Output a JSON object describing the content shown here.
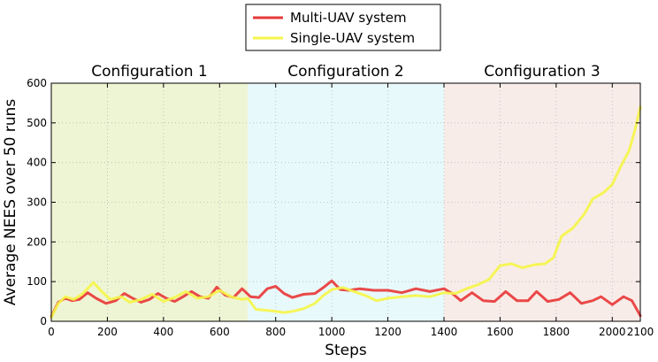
{
  "chart_data": {
    "type": "line",
    "title": "",
    "xlabel": "Steps",
    "ylabel": "Average NEES over 50 runs",
    "xlim": [
      0,
      2100
    ],
    "ylim": [
      0,
      600
    ],
    "xticks": [
      0,
      200,
      400,
      600,
      800,
      1000,
      1200,
      1400,
      1600,
      1800,
      2000,
      2100
    ],
    "yticks": [
      0,
      100,
      200,
      300,
      400,
      500,
      600
    ],
    "grid": true,
    "legend_position": "top-center",
    "regions": [
      {
        "label": "Configuration 1",
        "x_range": [
          0,
          700
        ],
        "color": "#eef5d4"
      },
      {
        "label": "Configuration 2",
        "x_range": [
          700,
          1400
        ],
        "color": "#e8f9fb"
      },
      {
        "label": "Configuration 3",
        "x_range": [
          1400,
          2100
        ],
        "color": "#f8ece8"
      }
    ],
    "series": [
      {
        "name": "Multi-UAV system",
        "color": "#e83a3a",
        "points": [
          [
            0,
            12
          ],
          [
            25,
            48
          ],
          [
            50,
            58
          ],
          [
            75,
            52
          ],
          [
            100,
            55
          ],
          [
            130,
            72
          ],
          [
            160,
            58
          ],
          [
            195,
            45
          ],
          [
            230,
            52
          ],
          [
            260,
            70
          ],
          [
            290,
            58
          ],
          [
            320,
            48
          ],
          [
            350,
            55
          ],
          [
            380,
            70
          ],
          [
            410,
            58
          ],
          [
            440,
            50
          ],
          [
            470,
            62
          ],
          [
            500,
            75
          ],
          [
            530,
            62
          ],
          [
            560,
            58
          ],
          [
            590,
            86
          ],
          [
            620,
            66
          ],
          [
            650,
            60
          ],
          [
            680,
            82
          ],
          [
            710,
            62
          ],
          [
            740,
            60
          ],
          [
            770,
            82
          ],
          [
            800,
            88
          ],
          [
            830,
            70
          ],
          [
            860,
            60
          ],
          [
            900,
            68
          ],
          [
            940,
            70
          ],
          [
            970,
            85
          ],
          [
            1000,
            102
          ],
          [
            1030,
            80
          ],
          [
            1060,
            78
          ],
          [
            1100,
            82
          ],
          [
            1150,
            78
          ],
          [
            1200,
            78
          ],
          [
            1250,
            72
          ],
          [
            1300,
            82
          ],
          [
            1350,
            75
          ],
          [
            1400,
            82
          ],
          [
            1430,
            70
          ],
          [
            1460,
            52
          ],
          [
            1500,
            72
          ],
          [
            1540,
            52
          ],
          [
            1580,
            50
          ],
          [
            1620,
            75
          ],
          [
            1660,
            52
          ],
          [
            1700,
            52
          ],
          [
            1730,
            75
          ],
          [
            1770,
            50
          ],
          [
            1810,
            55
          ],
          [
            1850,
            72
          ],
          [
            1890,
            45
          ],
          [
            1930,
            52
          ],
          [
            1960,
            62
          ],
          [
            2000,
            42
          ],
          [
            2040,
            62
          ],
          [
            2070,
            52
          ],
          [
            2100,
            14
          ]
        ]
      },
      {
        "name": "Single-UAV system",
        "color": "#f5f54a",
        "points": [
          [
            0,
            10
          ],
          [
            25,
            45
          ],
          [
            50,
            62
          ],
          [
            80,
            55
          ],
          [
            110,
            68
          ],
          [
            150,
            98
          ],
          [
            180,
            75
          ],
          [
            210,
            55
          ],
          [
            250,
            62
          ],
          [
            280,
            48
          ],
          [
            320,
            55
          ],
          [
            360,
            68
          ],
          [
            400,
            50
          ],
          [
            440,
            60
          ],
          [
            480,
            75
          ],
          [
            520,
            58
          ],
          [
            560,
            62
          ],
          [
            600,
            78
          ],
          [
            640,
            62
          ],
          [
            680,
            55
          ],
          [
            700,
            58
          ],
          [
            730,
            30
          ],
          [
            760,
            28
          ],
          [
            800,
            25
          ],
          [
            830,
            22
          ],
          [
            860,
            25
          ],
          [
            900,
            32
          ],
          [
            940,
            45
          ],
          [
            970,
            65
          ],
          [
            1000,
            80
          ],
          [
            1040,
            85
          ],
          [
            1080,
            75
          ],
          [
            1120,
            65
          ],
          [
            1160,
            52
          ],
          [
            1200,
            58
          ],
          [
            1250,
            62
          ],
          [
            1300,
            65
          ],
          [
            1350,
            62
          ],
          [
            1400,
            72
          ],
          [
            1440,
            70
          ],
          [
            1480,
            82
          ],
          [
            1520,
            92
          ],
          [
            1560,
            105
          ],
          [
            1600,
            140
          ],
          [
            1640,
            145
          ],
          [
            1680,
            135
          ],
          [
            1720,
            142
          ],
          [
            1760,
            145
          ],
          [
            1790,
            160
          ],
          [
            1820,
            215
          ],
          [
            1860,
            235
          ],
          [
            1900,
            270
          ],
          [
            1930,
            308
          ],
          [
            1970,
            325
          ],
          [
            2000,
            345
          ],
          [
            2030,
            390
          ],
          [
            2060,
            430
          ],
          [
            2080,
            480
          ],
          [
            2100,
            540
          ]
        ]
      }
    ]
  }
}
